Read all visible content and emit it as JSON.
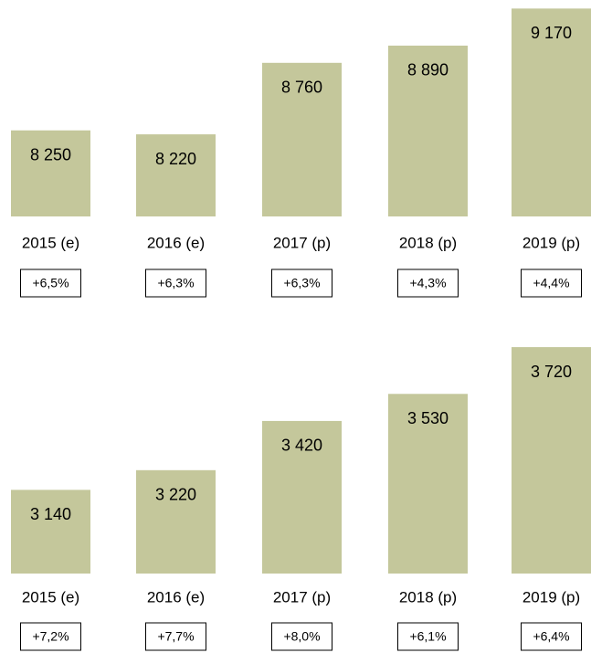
{
  "chart_data": [
    {
      "type": "bar",
      "categories": [
        "2015 (e)",
        "2016 (e)",
        "2017 (p)",
        "2018 (p)",
        "2019 (p)"
      ],
      "values": [
        8250,
        8220,
        8760,
        8890,
        9170
      ],
      "value_labels": [
        "8 250",
        "8 220",
        "8 760",
        "8 890",
        "9 170"
      ],
      "annotations": [
        "+6,5%",
        "+6,3%",
        "+6,3%",
        "+4,3%",
        "+4,4%"
      ],
      "color": "#c4c79b",
      "ylim": [
        7600,
        9200
      ]
    },
    {
      "type": "bar",
      "categories": [
        "2015 (e)",
        "2016 (e)",
        "2017 (p)",
        "2018 (p)",
        "2019 (p)"
      ],
      "values": [
        3140,
        3220,
        3420,
        3530,
        3720
      ],
      "value_labels": [
        "3 140",
        "3 220",
        "3 420",
        "3 530",
        "3 720"
      ],
      "annotations": [
        "+7,2%",
        "+7,7%",
        "+8,0%",
        "+6,1%",
        "+6,4%"
      ],
      "color": "#c4c79b",
      "ylim": [
        2800,
        3750
      ]
    }
  ]
}
